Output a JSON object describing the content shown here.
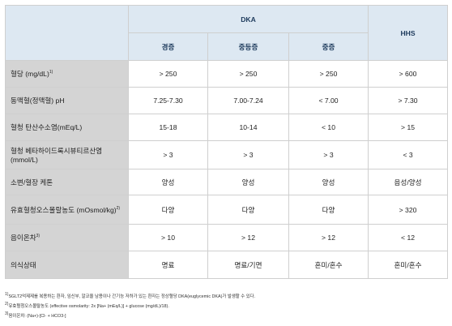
{
  "header": {
    "dka": "DKA",
    "hhs": "HHS",
    "sub": [
      "경증",
      "중등증",
      "중증"
    ]
  },
  "rows": [
    {
      "label": "혈당 (mg/dL)",
      "sup": "1)",
      "values": [
        "> 250",
        "> 250",
        "> 250",
        "> 600"
      ]
    },
    {
      "label": "동맥혈(정맥혈) pH",
      "sup": "",
      "values": [
        "7.25-7.30",
        "7.00-7.24",
        "< 7.00",
        "> 7.30"
      ]
    },
    {
      "label": "혈청 탄산수소염(mEq/L)",
      "sup": "",
      "values": [
        "15-18",
        "10-14",
        "< 10",
        "> 15"
      ]
    },
    {
      "label": "혈청 베타하이드록시뷰티르산염 (mmol/L)",
      "sup": "",
      "values": [
        "> 3",
        "> 3",
        "> 3",
        "< 3"
      ]
    },
    {
      "label": "소변/혈장 케톤",
      "sup": "",
      "values": [
        "양성",
        "양성",
        "양성",
        "음성/양성"
      ]
    },
    {
      "label": "유효혈청오스몰랄농도 (mOsmol/kg)",
      "sup": "2)",
      "values": [
        "다양",
        "다양",
        "다양",
        "> 320"
      ]
    },
    {
      "label": "음이온차",
      "sup": "3)",
      "values": [
        "> 10",
        "> 12",
        "> 12",
        "< 12"
      ]
    },
    {
      "label": "의식상태",
      "sup": "",
      "values": [
        "명료",
        "명료/기면",
        "혼미/혼수",
        "혼미/혼수"
      ]
    }
  ],
  "notes": {
    "n1_sup": "1)",
    "n1": "SGLT2억제제를 복용하는 환자, 임신부, 알코올 남용이나 간기능 저하가 있는 환자는 정상혈당 DKA(euglycemic DKA)가 발생할 수 있다.",
    "n2_sup": "2)",
    "n2": "유효혈청오스몰랄농도 (effective osmolarity: 2x [Na+ (mEq/L)] + glucose (mg/dL)/18).",
    "n3_sup": "3)",
    "n3": "음이온차: (Na+)-[Cl- + HCO3-]"
  }
}
